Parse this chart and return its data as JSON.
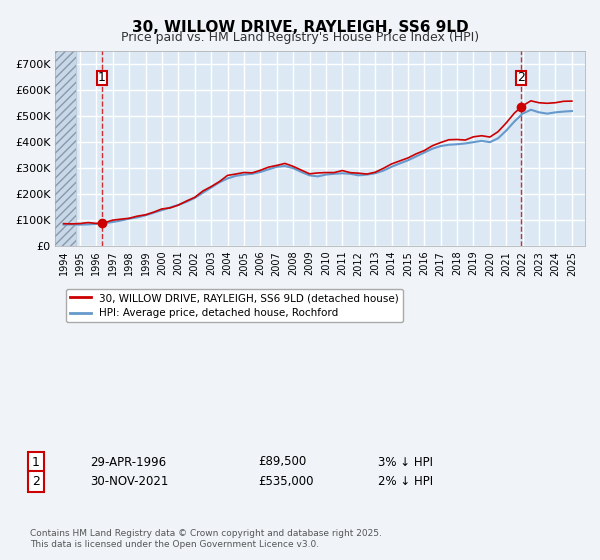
{
  "title": "30, WILLOW DRIVE, RAYLEIGH, SS6 9LD",
  "subtitle": "Price paid vs. HM Land Registry's House Price Index (HPI)",
  "legend_line1": "30, WILLOW DRIVE, RAYLEIGH, SS6 9LD (detached house)",
  "legend_line2": "HPI: Average price, detached house, Rochford",
  "annotation1_label": "1",
  "annotation1_date": "29-APR-1996",
  "annotation1_price": "£89,500",
  "annotation1_note": "3% ↓ HPI",
  "annotation2_label": "2",
  "annotation2_date": "30-NOV-2021",
  "annotation2_price": "£535,000",
  "annotation2_note": "2% ↓ HPI",
  "footer": "Contains HM Land Registry data © Crown copyright and database right 2025.\nThis data is licensed under the Open Government Licence v3.0.",
  "hpi_color": "#6699cc",
  "price_color": "#cc0000",
  "background_color": "#dce9f5",
  "plot_bg_color": "#dce9f5",
  "hatch_area_color": "#c0c8d0",
  "grid_color": "#ffffff",
  "ylim": [
    0,
    750000
  ],
  "xlim_start": 1993.5,
  "xlim_end": 2025.8,
  "sale1_x": 1996.33,
  "sale1_y": 89500,
  "sale2_x": 2021.92,
  "sale2_y": 535000
}
